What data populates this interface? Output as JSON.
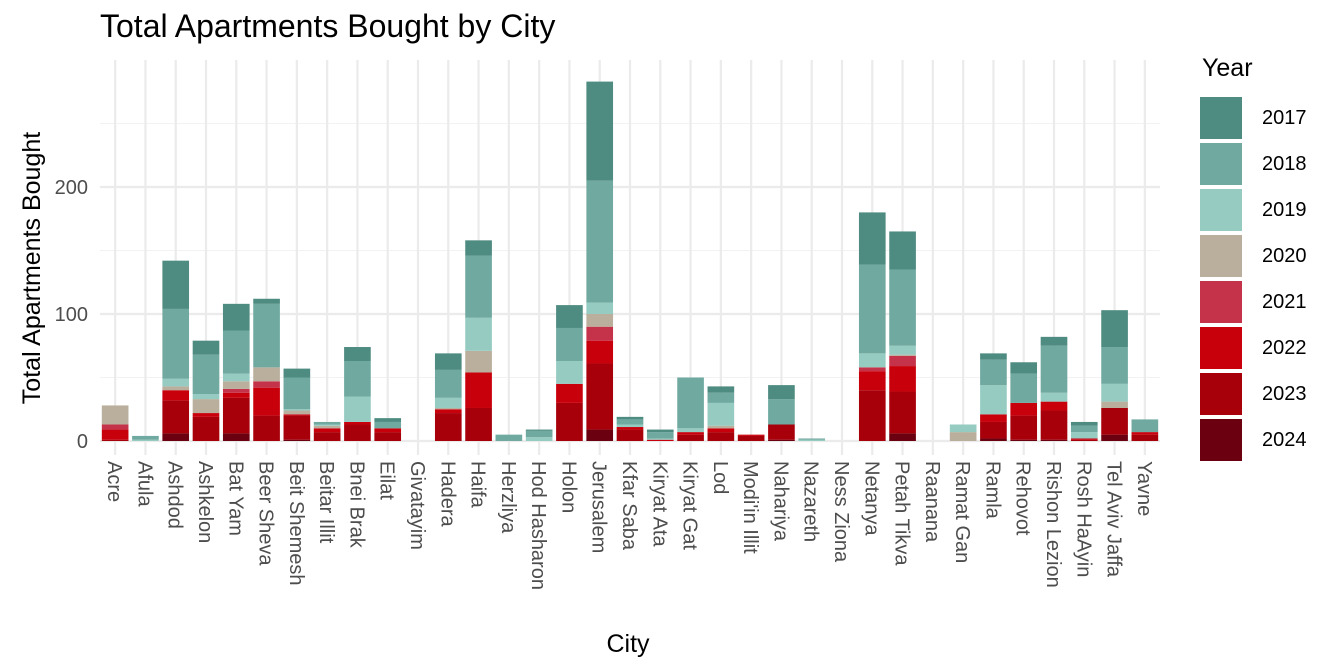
{
  "chart_data": {
    "type": "bar",
    "stacked": true,
    "title": "Total Apartments Bought by City",
    "xlabel": "City",
    "ylabel": "Total Apartments Bought",
    "ylim": [
      0,
      290
    ],
    "yticks": [
      0,
      100,
      200
    ],
    "grid": true,
    "legend_title": "Year",
    "legend_position": "right",
    "categories": [
      "Acre",
      "Afula",
      "Ashdod",
      "Ashkelon",
      "Bat Yam",
      "Beer Sheva",
      "Beit Shemesh",
      "Beitar Illit",
      "Bnei Brak",
      "Eilat",
      "Givatayim",
      "Hadera",
      "Haifa",
      "Herzliya",
      "Hod Hasharon",
      "Holon",
      "Jerusalem",
      "Kfar Saba",
      "Kiryat Ata",
      "Kiryat Gat",
      "Lod",
      "Modi'in Illit",
      "Nahariya",
      "Nazareth",
      "Ness Ziona",
      "Netanya",
      "Petah Tikva",
      "Raanana",
      "Ramat Gan",
      "Ramla",
      "Rehovot",
      "Rishon Lezion",
      "Rosh HaAyin",
      "Tel Aviv Jaffa",
      "Yavne"
    ],
    "series": [
      {
        "name": "2017",
        "color": "#4E8B80",
        "values": [
          0,
          0,
          38,
          11,
          21,
          4,
          7,
          0,
          11,
          3,
          0,
          13,
          12,
          0,
          1,
          18,
          78,
          2,
          2,
          0,
          5,
          0,
          11,
          0,
          0,
          41,
          30,
          0,
          0,
          5,
          9,
          7,
          3,
          29,
          0
        ]
      },
      {
        "name": "2018",
        "color": "#6FA9A0",
        "values": [
          0,
          3,
          55,
          31,
          34,
          50,
          25,
          2,
          28,
          5,
          0,
          22,
          49,
          5,
          5,
          26,
          96,
          4,
          5,
          40,
          8,
          0,
          20,
          1,
          0,
          70,
          60,
          0,
          0,
          20,
          23,
          37,
          5,
          29,
          10
        ]
      },
      {
        "name": "2019",
        "color": "#96CBC2",
        "values": [
          0,
          1,
          6,
          4,
          6,
          0,
          1,
          1,
          20,
          0,
          0,
          8,
          26,
          0,
          3,
          18,
          9,
          2,
          1,
          3,
          18,
          0,
          0,
          1,
          0,
          11,
          7,
          0,
          6,
          23,
          0,
          7,
          5,
          14,
          0
        ]
      },
      {
        "name": "2020",
        "color": "#B9AF9C",
        "values": [
          15,
          0,
          3,
          11,
          6,
          11,
          3,
          2,
          0,
          0,
          0,
          1,
          17,
          0,
          0,
          0,
          10,
          0,
          0,
          0,
          2,
          0,
          0,
          0,
          0,
          0,
          1,
          0,
          7,
          0,
          0,
          0,
          0,
          5,
          0
        ]
      },
      {
        "name": "2021",
        "color": "#C5334A",
        "values": [
          4,
          0,
          0,
          0,
          3,
          5,
          0,
          0,
          0,
          0,
          0,
          0,
          0,
          0,
          0,
          0,
          11,
          0,
          0,
          0,
          0,
          0,
          0,
          0,
          0,
          3,
          8,
          0,
          0,
          0,
          0,
          0,
          0,
          0,
          0
        ]
      },
      {
        "name": "2022",
        "color": "#C8000B",
        "values": [
          8,
          0,
          8,
          3,
          4,
          22,
          1,
          3,
          2,
          3,
          0,
          3,
          28,
          0,
          0,
          15,
          18,
          2,
          1,
          2,
          3,
          1,
          0,
          0,
          0,
          15,
          20,
          0,
          0,
          6,
          10,
          7,
          1,
          0,
          2
        ]
      },
      {
        "name": "2023",
        "color": "#A8000A",
        "values": [
          1,
          0,
          26,
          19,
          28,
          20,
          19,
          7,
          13,
          7,
          0,
          22,
          26,
          0,
          0,
          30,
          52,
          9,
          0,
          5,
          7,
          4,
          12,
          0,
          0,
          40,
          33,
          0,
          0,
          13,
          19,
          23,
          1,
          21,
          5
        ]
      },
      {
        "name": "2024",
        "color": "#6A0010",
        "values": [
          0,
          0,
          6,
          0,
          6,
          0,
          1,
          0,
          0,
          0,
          0,
          0,
          0,
          0,
          0,
          0,
          9,
          0,
          0,
          0,
          0,
          0,
          1,
          0,
          0,
          0,
          6,
          0,
          0,
          2,
          1,
          1,
          0,
          5,
          0
        ]
      }
    ]
  }
}
